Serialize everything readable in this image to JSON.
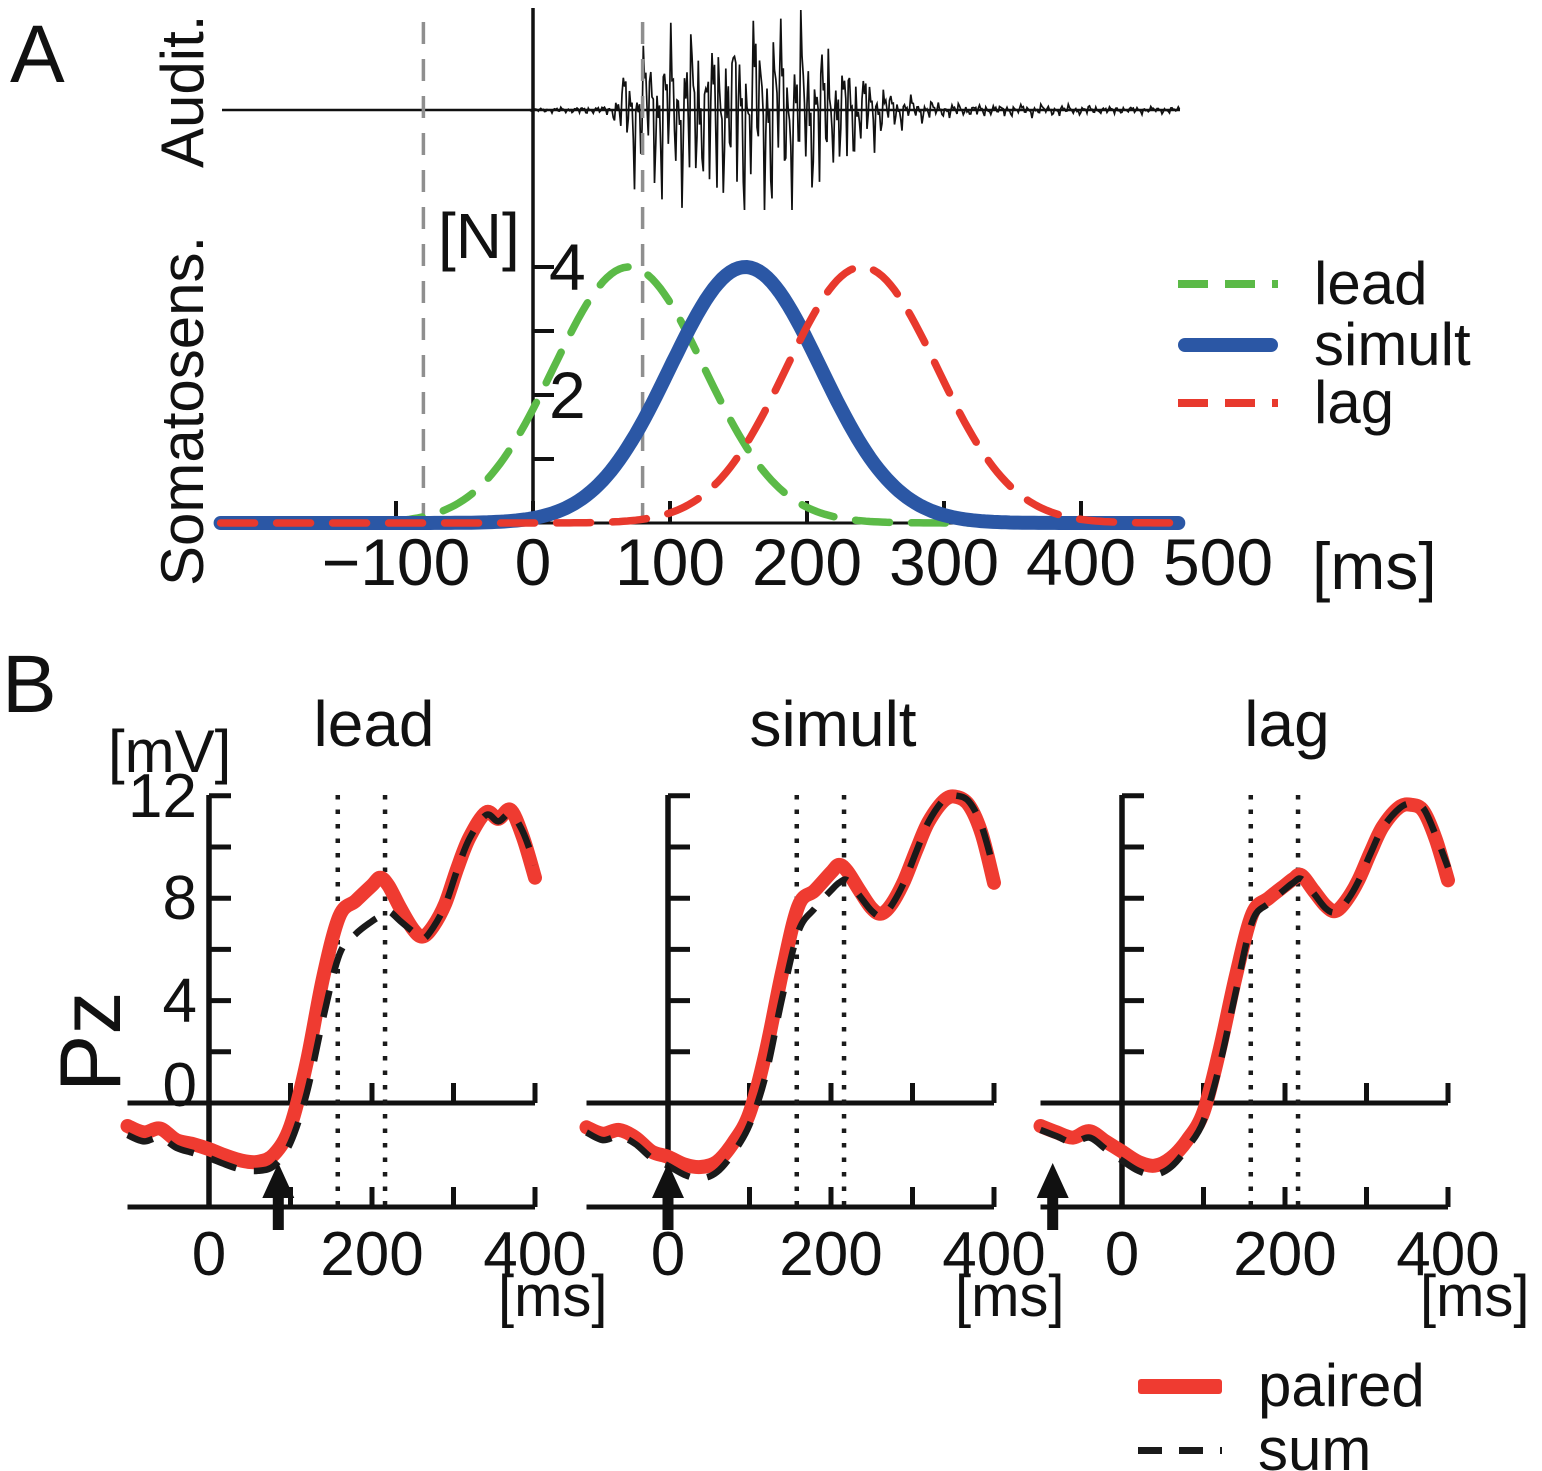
{
  "figure": {
    "panel_a": "A",
    "panel_b": "B"
  },
  "colors": {
    "green": "#5BBA47",
    "blue": "#2B57A5",
    "red": "#E8392D",
    "red_bright": "#EF3B31",
    "black": "#111111",
    "gray": "#8F8F8F"
  },
  "panelA": {
    "auditory_label": "Audit.",
    "somatosensory_label": "Somatosens.",
    "force_unit": "[N]",
    "time_unit": "[ms]",
    "x_tick_labels": [
      {
        "t": -100,
        "label": "−100"
      },
      {
        "t": 0,
        "label": "0"
      },
      {
        "t": 100,
        "label": "100"
      },
      {
        "t": 200,
        "label": "200"
      },
      {
        "t": 300,
        "label": "300"
      },
      {
        "t": 400,
        "label": "400"
      },
      {
        "t": 500,
        "label": "500"
      }
    ],
    "x_ticks_marked": [
      -100,
      0,
      100,
      200,
      300,
      400
    ],
    "y_ticks": [
      1,
      2,
      3,
      4
    ],
    "y_labeled_ticks": [
      4,
      2
    ],
    "legend": [
      {
        "label": "lead",
        "color_key": "green",
        "style": "dashed"
      },
      {
        "label": "simult",
        "color_key": "blue",
        "style": "solid"
      },
      {
        "label": "lag",
        "color_key": "red",
        "style": "dashed"
      }
    ]
  },
  "panelB": {
    "electrode": "Pz",
    "amplitude_unit": "[mV]",
    "time_unit": "[ms]",
    "y_tick_values": [
      12,
      10,
      8,
      6,
      4,
      2
    ],
    "y_labeled_ticks": [
      12,
      8,
      4,
      0
    ],
    "x_tick_values": [
      100,
      200,
      300,
      400
    ],
    "x_tick_labels": [
      {
        "t": 0,
        "label": "0"
      },
      {
        "t": 200,
        "label": "200"
      },
      {
        "t": 400,
        "label": "400"
      }
    ],
    "plots": [
      {
        "title": "lead"
      },
      {
        "title": "simult"
      },
      {
        "title": "lag"
      }
    ],
    "legend": [
      {
        "label": "paired",
        "color_key": "red_bright",
        "style": "solid"
      },
      {
        "label": "sum",
        "color_key": "black",
        "style": "dashed"
      }
    ]
  },
  "chart_data": [
    {
      "id": "panelA_stimuli",
      "type": "line",
      "title": "A",
      "xlabel": "[ms]",
      "ylabel": "[N]",
      "xlim": [
        -228,
        472
      ],
      "ylim": [
        0,
        4.5
      ],
      "x_ticks": [
        -100,
        0,
        100,
        200,
        300,
        400,
        500
      ],
      "y_ticks": [
        2,
        4
      ],
      "legend_position": "right",
      "event_lines_ms": [
        -80,
        80
      ],
      "series": [
        {
          "name": "lead",
          "style": "dashed",
          "color_key": "green",
          "model": "gaussian",
          "peak_ms": 70,
          "sd_ms": 55,
          "amplitude_N": 4
        },
        {
          "name": "simult",
          "style": "solid",
          "color_key": "blue",
          "model": "gaussian",
          "peak_ms": 155,
          "sd_ms": 55,
          "amplitude_N": 4
        },
        {
          "name": "lag",
          "style": "dashed",
          "color_key": "red",
          "model": "gaussian",
          "peak_ms": 240,
          "sd_ms": 55,
          "amplitude_N": 4
        }
      ],
      "audio_waveform": {
        "onset_ms": 0,
        "envelope_ms_amp": [
          [
            -225,
            0
          ],
          [
            -5,
            0
          ],
          [
            0,
            0.02
          ],
          [
            40,
            0.04
          ],
          [
            58,
            0.05
          ],
          [
            65,
            0.38
          ],
          [
            78,
            0.62
          ],
          [
            95,
            0.78
          ],
          [
            115,
            0.9
          ],
          [
            140,
            0.96
          ],
          [
            165,
            1.0
          ],
          [
            185,
            0.94
          ],
          [
            205,
            0.84
          ],
          [
            222,
            0.68
          ],
          [
            238,
            0.5
          ],
          [
            252,
            0.3
          ],
          [
            264,
            0.17
          ],
          [
            285,
            0.1
          ],
          [
            310,
            0.07
          ],
          [
            345,
            0.06
          ],
          [
            390,
            0.05
          ],
          [
            430,
            0.04
          ],
          [
            470,
            0.03
          ]
        ]
      }
    },
    {
      "id": "pz_lead",
      "type": "line",
      "title": "lead",
      "xlabel": "[ms]",
      "ylabel": "[mV]",
      "xlim": [
        -100,
        400
      ],
      "ylim": [
        -3.5,
        12.5
      ],
      "dotted_lines_ms": [
        158,
        216
      ],
      "arrow_ms": 85,
      "x_ms": [
        -100,
        -80,
        -60,
        -40,
        -20,
        0,
        20,
        40,
        60,
        80,
        100,
        120,
        140,
        160,
        180,
        200,
        210,
        220,
        235,
        250,
        262,
        275,
        290,
        305,
        320,
        340,
        355,
        370,
        385,
        400
      ],
      "series": [
        {
          "name": "paired",
          "color_key": "red_bright",
          "style": "solid",
          "values": [
            -0.9,
            -1.15,
            -1.0,
            -1.45,
            -1.6,
            -1.8,
            -2.05,
            -2.25,
            -2.3,
            -2.0,
            -0.9,
            1.6,
            4.9,
            7.3,
            7.9,
            8.5,
            8.8,
            8.5,
            7.6,
            6.8,
            6.5,
            6.9,
            7.8,
            9.2,
            10.4,
            11.35,
            11.1,
            11.45,
            10.4,
            8.8
          ]
        },
        {
          "name": "sum",
          "color_key": "black",
          "style": "dashed",
          "values": [
            -1.25,
            -1.5,
            -1.35,
            -1.75,
            -1.95,
            -2.15,
            -2.4,
            -2.6,
            -2.65,
            -2.45,
            -1.55,
            0.4,
            3.3,
            5.8,
            6.6,
            7.1,
            7.3,
            7.5,
            7.1,
            6.7,
            6.4,
            6.85,
            7.75,
            9.15,
            10.35,
            11.25,
            11.0,
            11.3,
            10.6,
            9.3
          ]
        }
      ]
    },
    {
      "id": "pz_simult",
      "type": "line",
      "title": "simult",
      "xlabel": "[ms]",
      "ylabel": "[mV]",
      "xlim": [
        -100,
        400
      ],
      "ylim": [
        -3.5,
        12.5
      ],
      "dotted_lines_ms": [
        158,
        216
      ],
      "arrow_ms": 0,
      "x_ms": [
        -100,
        -80,
        -60,
        -40,
        -20,
        0,
        20,
        40,
        60,
        80,
        100,
        120,
        140,
        160,
        180,
        200,
        210,
        220,
        235,
        250,
        262,
        275,
        290,
        305,
        320,
        340,
        355,
        370,
        385,
        400
      ],
      "series": [
        {
          "name": "paired",
          "color_key": "red_bright",
          "style": "solid",
          "values": [
            -0.95,
            -1.2,
            -1.05,
            -1.35,
            -1.9,
            -2.1,
            -2.4,
            -2.5,
            -2.3,
            -1.55,
            -0.4,
            2.0,
            5.1,
            7.7,
            8.3,
            9.0,
            9.3,
            9.05,
            8.3,
            7.6,
            7.4,
            7.8,
            8.7,
            9.9,
            11.0,
            11.85,
            11.95,
            11.6,
            10.5,
            8.6
          ]
        },
        {
          "name": "sum",
          "color_key": "black",
          "style": "dashed",
          "values": [
            -1.15,
            -1.45,
            -1.3,
            -1.6,
            -2.15,
            -2.45,
            -2.8,
            -2.95,
            -2.7,
            -1.95,
            -0.85,
            1.1,
            4.1,
            6.7,
            7.6,
            8.3,
            8.6,
            8.7,
            8.1,
            7.5,
            7.3,
            7.75,
            8.65,
            9.85,
            11.0,
            11.9,
            12.0,
            11.75,
            10.8,
            9.1
          ]
        }
      ]
    },
    {
      "id": "pz_lag",
      "type": "line",
      "title": "lag",
      "xlabel": "[ms]",
      "ylabel": "[mV]",
      "xlim": [
        -100,
        400
      ],
      "ylim": [
        -3.5,
        12.5
      ],
      "dotted_lines_ms": [
        158,
        216
      ],
      "arrow_ms": -85,
      "x_ms": [
        -100,
        -80,
        -60,
        -40,
        -20,
        0,
        20,
        40,
        60,
        80,
        100,
        120,
        140,
        160,
        180,
        200,
        210,
        220,
        235,
        250,
        262,
        275,
        290,
        305,
        320,
        340,
        355,
        370,
        385,
        400
      ],
      "series": [
        {
          "name": "paired",
          "color_key": "red_bright",
          "style": "solid",
          "values": [
            -0.9,
            -1.15,
            -1.35,
            -1.1,
            -1.5,
            -1.9,
            -2.3,
            -2.45,
            -2.15,
            -1.45,
            -0.35,
            2.1,
            5.0,
            7.4,
            8.0,
            8.5,
            8.75,
            8.9,
            8.3,
            7.7,
            7.5,
            7.9,
            8.7,
            9.8,
            10.8,
            11.55,
            11.65,
            11.4,
            10.3,
            8.7
          ]
        },
        {
          "name": "sum",
          "color_key": "black",
          "style": "dashed",
          "values": [
            -1.05,
            -1.3,
            -1.55,
            -1.35,
            -1.8,
            -2.25,
            -2.65,
            -2.8,
            -2.5,
            -1.75,
            -0.7,
            1.5,
            4.4,
            7.1,
            7.8,
            8.35,
            8.6,
            8.75,
            8.2,
            7.6,
            7.45,
            7.85,
            8.65,
            9.75,
            10.75,
            11.5,
            11.7,
            11.5,
            10.45,
            9.2
          ]
        }
      ]
    }
  ]
}
